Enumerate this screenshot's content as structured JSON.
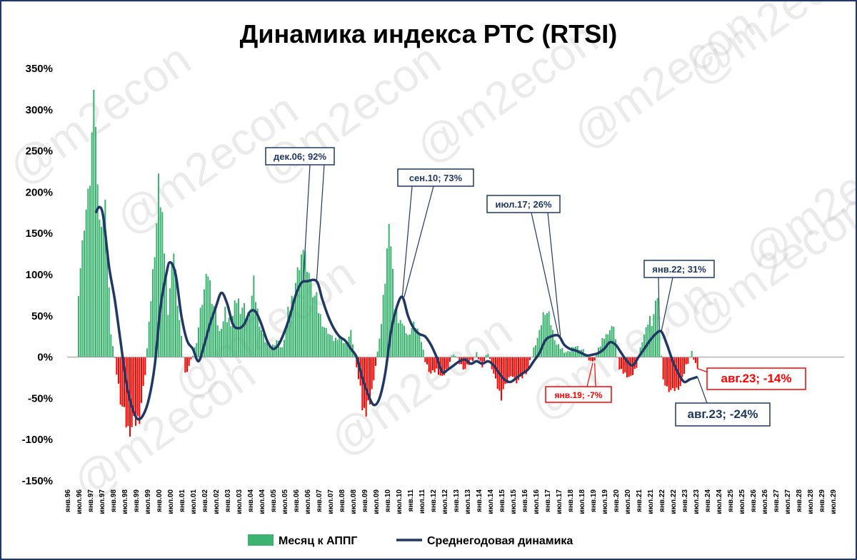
{
  "chart_data": {
    "type": "bar",
    "title": "Динамика индекса РТС (RTSI)",
    "ylim": [
      -150,
      350
    ],
    "y_unit": "%",
    "yticks": [
      "350%",
      "300%",
      "250%",
      "200%",
      "150%",
      "100%",
      "50%",
      "0%",
      "-50%",
      "-100%",
      "-150%"
    ],
    "grid": false,
    "legend_position": "bottom",
    "x_tick_labels": [
      "янв.96",
      "июл.96",
      "янв.97",
      "июл.97",
      "янв.98",
      "июл.98",
      "янв.99",
      "июл.99",
      "янв.00",
      "июл.00",
      "янв.01",
      "июл.01",
      "янв.02",
      "июл.02",
      "янв.03",
      "июл.03",
      "янв.04",
      "июл.04",
      "янв.05",
      "июл.05",
      "янв.06",
      "июл.06",
      "янв.07",
      "июл.07",
      "янв.08",
      "июл.08",
      "янв.09",
      "июл.09",
      "янв.10",
      "июл.10",
      "янв.11",
      "июл.11",
      "янв.12",
      "июл.12",
      "янв.13",
      "июл.13",
      "янв.14",
      "июл.14",
      "янв.15",
      "июл.15",
      "янв.16",
      "июл.16",
      "янв.17",
      "июл.17",
      "янв.18",
      "июл.18",
      "янв.19",
      "июл.19",
      "янв.20",
      "июл.20",
      "янв.21",
      "июл.21",
      "янв.22",
      "июл.22",
      "янв.23",
      "июл.23",
      "янв.24",
      "июл.24",
      "янв.25",
      "июл.25",
      "янв.26",
      "июл.26",
      "янв.27",
      "июл.27",
      "янв.28",
      "июл.28",
      "янв.29",
      "июл.29"
    ],
    "series": [
      {
        "name": "Месяц к АППГ",
        "kind": "bar",
        "color_positive": "#3cb371",
        "color_negative": "#ff0000",
        "points": [
          [
            "1996-07",
            85
          ],
          [
            "1996-10",
            160
          ],
          [
            "1997-01",
            210
          ],
          [
            "1997-03",
            322
          ],
          [
            "1997-06",
            160
          ],
          [
            "1997-09",
            180
          ],
          [
            "1997-12",
            30
          ],
          [
            "1998-03",
            -20
          ],
          [
            "1998-06",
            -60
          ],
          [
            "1998-09",
            -88
          ],
          [
            "1998-12",
            -80
          ],
          [
            "1999-03",
            -70
          ],
          [
            "1999-06",
            -20
          ],
          [
            "1999-09",
            70
          ],
          [
            "1999-12",
            160
          ],
          [
            "2000-01",
            216
          ],
          [
            "2000-03",
            165
          ],
          [
            "2000-06",
            60
          ],
          [
            "2000-09",
            130
          ],
          [
            "2000-12",
            45
          ],
          [
            "2001-03",
            -20
          ],
          [
            "2001-06",
            -5
          ],
          [
            "2001-09",
            20
          ],
          [
            "2001-12",
            70
          ],
          [
            "2002-03",
            100
          ],
          [
            "2002-06",
            60
          ],
          [
            "2002-09",
            30
          ],
          [
            "2002-12",
            50
          ],
          [
            "2003-03",
            40
          ],
          [
            "2003-06",
            70
          ],
          [
            "2003-09",
            60
          ],
          [
            "2003-12",
            50
          ],
          [
            "2004-03",
            90
          ],
          [
            "2004-06",
            40
          ],
          [
            "2004-09",
            20
          ],
          [
            "2004-12",
            10
          ],
          [
            "2005-03",
            20
          ],
          [
            "2005-06",
            10
          ],
          [
            "2005-09",
            50
          ],
          [
            "2005-12",
            80
          ],
          [
            "2006-03",
            110
          ],
          [
            "2006-05",
            130
          ],
          [
            "2006-09",
            90
          ],
          [
            "2006-12",
            70
          ],
          [
            "2007-03",
            40
          ],
          [
            "2007-06",
            30
          ],
          [
            "2007-09",
            20
          ],
          [
            "2007-12",
            25
          ],
          [
            "2008-03",
            15
          ],
          [
            "2008-06",
            30
          ],
          [
            "2008-09",
            -10
          ],
          [
            "2008-12",
            -60
          ],
          [
            "2009-02",
            -72
          ],
          [
            "2009-05",
            -40
          ],
          [
            "2009-09",
            20
          ],
          [
            "2009-12",
            100
          ],
          [
            "2010-02",
            168
          ],
          [
            "2010-05",
            60
          ],
          [
            "2010-09",
            40
          ],
          [
            "2010-12",
            25
          ],
          [
            "2011-03",
            40
          ],
          [
            "2011-06",
            30
          ],
          [
            "2011-09",
            -5
          ],
          [
            "2011-12",
            -20
          ],
          [
            "2012-03",
            -15
          ],
          [
            "2012-06",
            -25
          ],
          [
            "2012-09",
            -10
          ],
          [
            "2012-12",
            5
          ],
          [
            "2013-03",
            -8
          ],
          [
            "2013-06",
            -15
          ],
          [
            "2013-09",
            -5
          ],
          [
            "2013-12",
            3
          ],
          [
            "2014-03",
            -10
          ],
          [
            "2014-06",
            5
          ],
          [
            "2014-09",
            -20
          ],
          [
            "2014-12",
            -45
          ],
          [
            "2015-03",
            -35
          ],
          [
            "2015-06",
            -20
          ],
          [
            "2015-09",
            -30
          ],
          [
            "2015-12",
            -25
          ],
          [
            "2016-03",
            -15
          ],
          [
            "2016-06",
            10
          ],
          [
            "2016-09",
            30
          ],
          [
            "2016-12",
            60
          ],
          [
            "2017-03",
            40
          ],
          [
            "2017-06",
            15
          ],
          [
            "2017-09",
            10
          ],
          [
            "2017-12",
            5
          ],
          [
            "2018-03",
            15
          ],
          [
            "2018-06",
            10
          ],
          [
            "2018-09",
            5
          ],
          [
            "2018-12",
            -5
          ],
          [
            "2019-01",
            -7
          ],
          [
            "2019-06",
            20
          ],
          [
            "2019-09",
            30
          ],
          [
            "2019-12",
            38
          ],
          [
            "2020-03",
            -15
          ],
          [
            "2020-06",
            -20
          ],
          [
            "2020-09",
            -25
          ],
          [
            "2020-12",
            -10
          ],
          [
            "2021-03",
            20
          ],
          [
            "2021-06",
            40
          ],
          [
            "2021-09",
            50
          ],
          [
            "2021-11",
            65
          ],
          [
            "2022-02",
            -30
          ],
          [
            "2022-05",
            -40
          ],
          [
            "2022-08",
            -40
          ],
          [
            "2022-11",
            -35
          ],
          [
            "2023-02",
            -10
          ],
          [
            "2023-05",
            5
          ],
          [
            "2023-08",
            -14
          ]
        ]
      },
      {
        "name": "Среднегодовая динамика",
        "kind": "line",
        "color": "#1f3864",
        "points": [
          [
            "1997-04",
            175
          ],
          [
            "1997-06",
            182
          ],
          [
            "1997-08",
            170
          ],
          [
            "1997-11",
            110
          ],
          [
            "1998-02",
            70
          ],
          [
            "1998-05",
            20
          ],
          [
            "1998-08",
            -30
          ],
          [
            "1998-11",
            -60
          ],
          [
            "1999-02",
            -75
          ],
          [
            "1999-05",
            -70
          ],
          [
            "1999-08",
            -50
          ],
          [
            "1999-11",
            -10
          ],
          [
            "2000-02",
            60
          ],
          [
            "2000-05",
            100
          ],
          [
            "2000-07",
            115
          ],
          [
            "2000-10",
            100
          ],
          [
            "2001-01",
            50
          ],
          [
            "2001-04",
            20
          ],
          [
            "2001-07",
            10
          ],
          [
            "2001-10",
            -5
          ],
          [
            "2002-01",
            15
          ],
          [
            "2002-04",
            40
          ],
          [
            "2002-07",
            60
          ],
          [
            "2002-10",
            78
          ],
          [
            "2003-01",
            65
          ],
          [
            "2003-04",
            40
          ],
          [
            "2003-07",
            35
          ],
          [
            "2003-10",
            40
          ],
          [
            "2004-01",
            55
          ],
          [
            "2004-04",
            55
          ],
          [
            "2004-07",
            40
          ],
          [
            "2004-10",
            20
          ],
          [
            "2005-01",
            10
          ],
          [
            "2005-04",
            15
          ],
          [
            "2005-07",
            30
          ],
          [
            "2005-10",
            50
          ],
          [
            "2006-01",
            75
          ],
          [
            "2006-04",
            90
          ],
          [
            "2006-07",
            92
          ],
          [
            "2006-12",
            92
          ],
          [
            "2007-03",
            70
          ],
          [
            "2007-06",
            50
          ],
          [
            "2007-09",
            35
          ],
          [
            "2007-12",
            25
          ],
          [
            "2008-03",
            20
          ],
          [
            "2008-06",
            10
          ],
          [
            "2008-09",
            0
          ],
          [
            "2008-12",
            -25
          ],
          [
            "2009-03",
            -45
          ],
          [
            "2009-06",
            -58
          ],
          [
            "2009-09",
            -50
          ],
          [
            "2009-12",
            -20
          ],
          [
            "2010-03",
            30
          ],
          [
            "2010-06",
            60
          ],
          [
            "2010-09",
            73
          ],
          [
            "2010-12",
            50
          ],
          [
            "2011-03",
            35
          ],
          [
            "2011-06",
            28
          ],
          [
            "2011-09",
            25
          ],
          [
            "2011-12",
            15
          ],
          [
            "2012-03",
            0
          ],
          [
            "2012-06",
            -18
          ],
          [
            "2012-09",
            -15
          ],
          [
            "2012-12",
            -10
          ],
          [
            "2013-03",
            -5
          ],
          [
            "2013-06",
            -3
          ],
          [
            "2013-09",
            -8
          ],
          [
            "2013-12",
            -5
          ],
          [
            "2014-03",
            -8
          ],
          [
            "2014-06",
            -5
          ],
          [
            "2014-09",
            -10
          ],
          [
            "2014-12",
            -20
          ],
          [
            "2015-03",
            -28
          ],
          [
            "2015-06",
            -30
          ],
          [
            "2015-09",
            -25
          ],
          [
            "2015-12",
            -20
          ],
          [
            "2016-03",
            -15
          ],
          [
            "2016-06",
            -5
          ],
          [
            "2016-09",
            5
          ],
          [
            "2016-12",
            20
          ],
          [
            "2017-03",
            25
          ],
          [
            "2017-07",
            26
          ],
          [
            "2017-10",
            15
          ],
          [
            "2018-01",
            10
          ],
          [
            "2018-04",
            8
          ],
          [
            "2018-07",
            5
          ],
          [
            "2018-10",
            2
          ],
          [
            "2019-01",
            3
          ],
          [
            "2019-04",
            5
          ],
          [
            "2019-07",
            10
          ],
          [
            "2019-10",
            18
          ],
          [
            "2020-01",
            15
          ],
          [
            "2020-04",
            5
          ],
          [
            "2020-07",
            -5
          ],
          [
            "2020-10",
            -10
          ],
          [
            "2021-01",
            0
          ],
          [
            "2021-04",
            10
          ],
          [
            "2021-07",
            20
          ],
          [
            "2021-10",
            28
          ],
          [
            "2022-01",
            31
          ],
          [
            "2022-04",
            15
          ],
          [
            "2022-07",
            -5
          ],
          [
            "2022-10",
            -20
          ],
          [
            "2023-01",
            -30
          ],
          [
            "2023-04",
            -27
          ],
          [
            "2023-08",
            -24
          ]
        ]
      }
    ],
    "annotations": [
      {
        "label": "дек.06; 92%",
        "style": "blue"
      },
      {
        "label": "сен.10; 73%",
        "style": "blue"
      },
      {
        "label": "июл.17; 26%",
        "style": "blue"
      },
      {
        "label": "янв.22; 31%",
        "style": "blue"
      },
      {
        "label": "янв.19; -7%",
        "style": "red"
      },
      {
        "label": "авг.23; -14%",
        "style": "big-red"
      },
      {
        "label": "авг.23; -24%",
        "style": "big-blue"
      }
    ],
    "watermark": "@m2econ"
  }
}
